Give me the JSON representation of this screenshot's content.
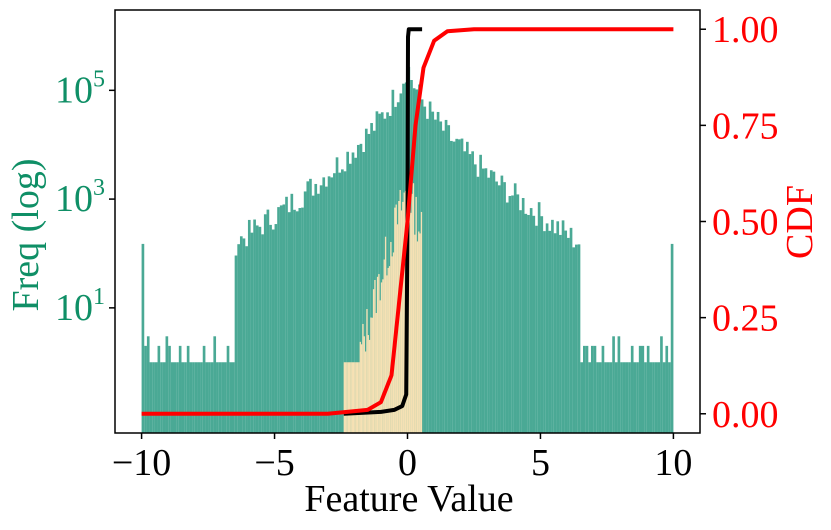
{
  "chart_data": {
    "type": "bar",
    "title": "",
    "xlabel": "Feature Value",
    "ylabel_left": "Freq (log)",
    "ylabel_right": "CDF",
    "xlim": [
      -11,
      11
    ],
    "xticks": [
      -10,
      -5,
      0,
      5,
      10
    ],
    "xtick_labels": [
      "−10",
      "−5",
      "0",
      "5",
      "10"
    ],
    "left_axis": {
      "scale": "log",
      "ylim": [
        0.05,
        3000000
      ],
      "ticks": [
        10,
        1000,
        100000
      ],
      "tick_labels": [
        {
          "base": "10",
          "exp": "1"
        },
        {
          "base": "10",
          "exp": "3"
        },
        {
          "base": "10",
          "exp": "5"
        }
      ],
      "color": "#0f8f66"
    },
    "right_axis": {
      "scale": "linear",
      "ylim": [
        -0.05,
        1.05
      ],
      "ticks": [
        0.0,
        0.25,
        0.5,
        0.75,
        1.0
      ],
      "tick_labels": [
        "0.00",
        "0.25",
        "0.50",
        "0.75",
        "1.00"
      ],
      "color": "#ff0000"
    },
    "series": [
      {
        "kind": "histogram",
        "color": "#2a9a82",
        "bin_width": 0.1,
        "range": [
          -10,
          10
        ],
        "description_values": {
          "peak_at": 0.0,
          "peak_count": 350000,
          "edge_spikes": {
            "-10": 150,
            "10": 150
          },
          "tail_floor_count": 1
        }
      },
      {
        "kind": "histogram",
        "color": "#ffe4b5",
        "bin_width": 0.05,
        "range": [
          -2.4,
          0.55
        ],
        "description_values": {
          "peak_at": 0.0,
          "peak_count": 1500,
          "base_count": 1
        }
      },
      {
        "kind": "cdf",
        "color": "#000000",
        "points": [
          [
            -2.4,
            0.0
          ],
          [
            -1.0,
            0.005
          ],
          [
            -0.5,
            0.01
          ],
          [
            -0.2,
            0.02
          ],
          [
            -0.05,
            0.05
          ],
          [
            0.0,
            0.5
          ],
          [
            0.02,
            0.98
          ],
          [
            0.05,
            1.0
          ],
          [
            0.55,
            1.0
          ]
        ]
      },
      {
        "kind": "cdf",
        "color": "#ff0000",
        "points": [
          [
            -10,
            0.0
          ],
          [
            -3,
            0.0
          ],
          [
            -1.5,
            0.01
          ],
          [
            -1.0,
            0.03
          ],
          [
            -0.6,
            0.1
          ],
          [
            -0.3,
            0.3
          ],
          [
            0.0,
            0.5
          ],
          [
            0.3,
            0.75
          ],
          [
            0.6,
            0.9
          ],
          [
            1.0,
            0.97
          ],
          [
            1.5,
            0.995
          ],
          [
            2.5,
            1.0
          ],
          [
            10,
            1.0
          ]
        ]
      }
    ],
    "grid": false,
    "legend": "none"
  }
}
